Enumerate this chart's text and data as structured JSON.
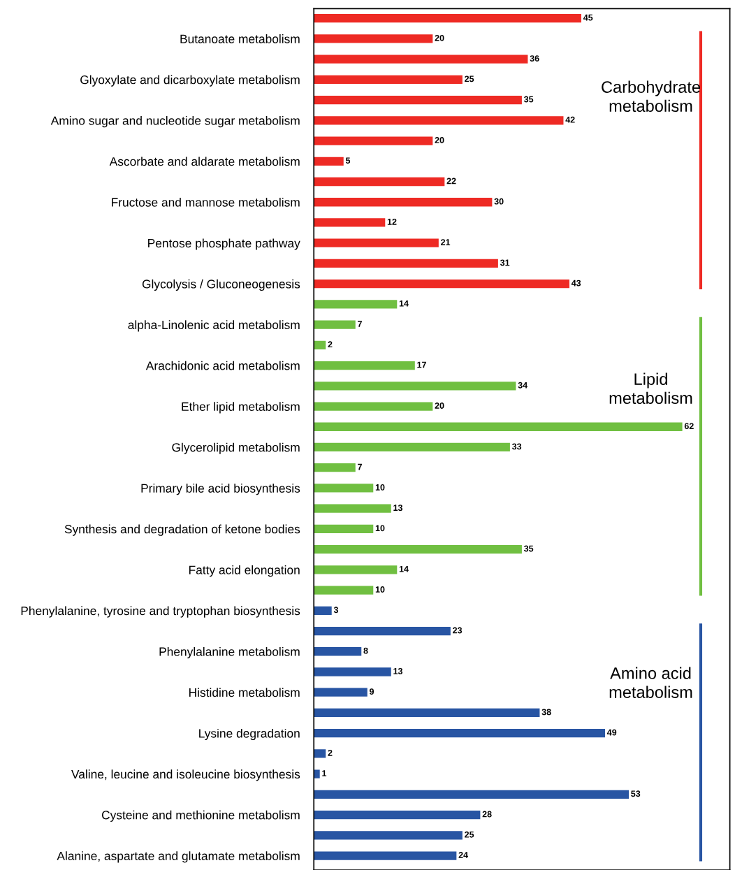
{
  "chart_data": {
    "type": "bar",
    "orientation": "horizontal",
    "categories": [
      null,
      "Butanoate metabolism",
      null,
      "Glyoxylate and dicarboxylate metabolism",
      null,
      "Amino sugar and nucleotide sugar metabolism",
      null,
      "Ascorbate and aldarate metabolism",
      null,
      "Fructose and mannose metabolism",
      null,
      "Pentose phosphate pathway",
      null,
      "Glycolysis / Gluconeogenesis",
      null,
      "alpha-Linolenic acid metabolism",
      null,
      "Arachidonic acid metabolism",
      null,
      "Ether lipid metabolism",
      null,
      "Glycerolipid metabolism",
      null,
      "Primary bile acid biosynthesis",
      null,
      "Synthesis and degradation of ketone bodies",
      null,
      "Fatty acid elongation",
      null,
      "Phenylalanine, tyrosine and tryptophan biosynthesis",
      null,
      "Phenylalanine metabolism",
      null,
      "Histidine metabolism",
      null,
      "Lysine degradation",
      null,
      "Valine, leucine and isoleucine biosynthesis",
      null,
      "Cysteine and methionine metabolism",
      null,
      "Alanine, aspartate and glutamate metabolism"
    ],
    "values": [
      45,
      20,
      36,
      25,
      35,
      42,
      20,
      5,
      22,
      30,
      12,
      21,
      31,
      43,
      14,
      7,
      2,
      17,
      34,
      20,
      62,
      33,
      7,
      10,
      13,
      10,
      35,
      14,
      10,
      3,
      23,
      8,
      13,
      9,
      38,
      49,
      2,
      1,
      53,
      28,
      25,
      24
    ],
    "colors": [
      "#ee2a24",
      "#ee2a24",
      "#ee2a24",
      "#ee2a24",
      "#ee2a24",
      "#ee2a24",
      "#ee2a24",
      "#ee2a24",
      "#ee2a24",
      "#ee2a24",
      "#ee2a24",
      "#ee2a24",
      "#ee2a24",
      "#ee2a24",
      "#70bf41",
      "#70bf41",
      "#70bf41",
      "#70bf41",
      "#70bf41",
      "#70bf41",
      "#70bf41",
      "#70bf41",
      "#70bf41",
      "#70bf41",
      "#70bf41",
      "#70bf41",
      "#70bf41",
      "#70bf41",
      "#70bf41",
      "#2855a3",
      "#2855a3",
      "#2855a3",
      "#2855a3",
      "#2855a3",
      "#2855a3",
      "#2855a3",
      "#2855a3",
      "#2855a3",
      "#2855a3",
      "#2855a3",
      "#2855a3",
      "#2855a3"
    ],
    "xlim": [
      0,
      70
    ],
    "data_labels": true,
    "tick_labels": "y",
    "grid": false,
    "annotations": [
      "Carbohydrate\nmetabolism",
      "Lipid\nmetabolism",
      "Amino acid\nmetabolism"
    ]
  }
}
